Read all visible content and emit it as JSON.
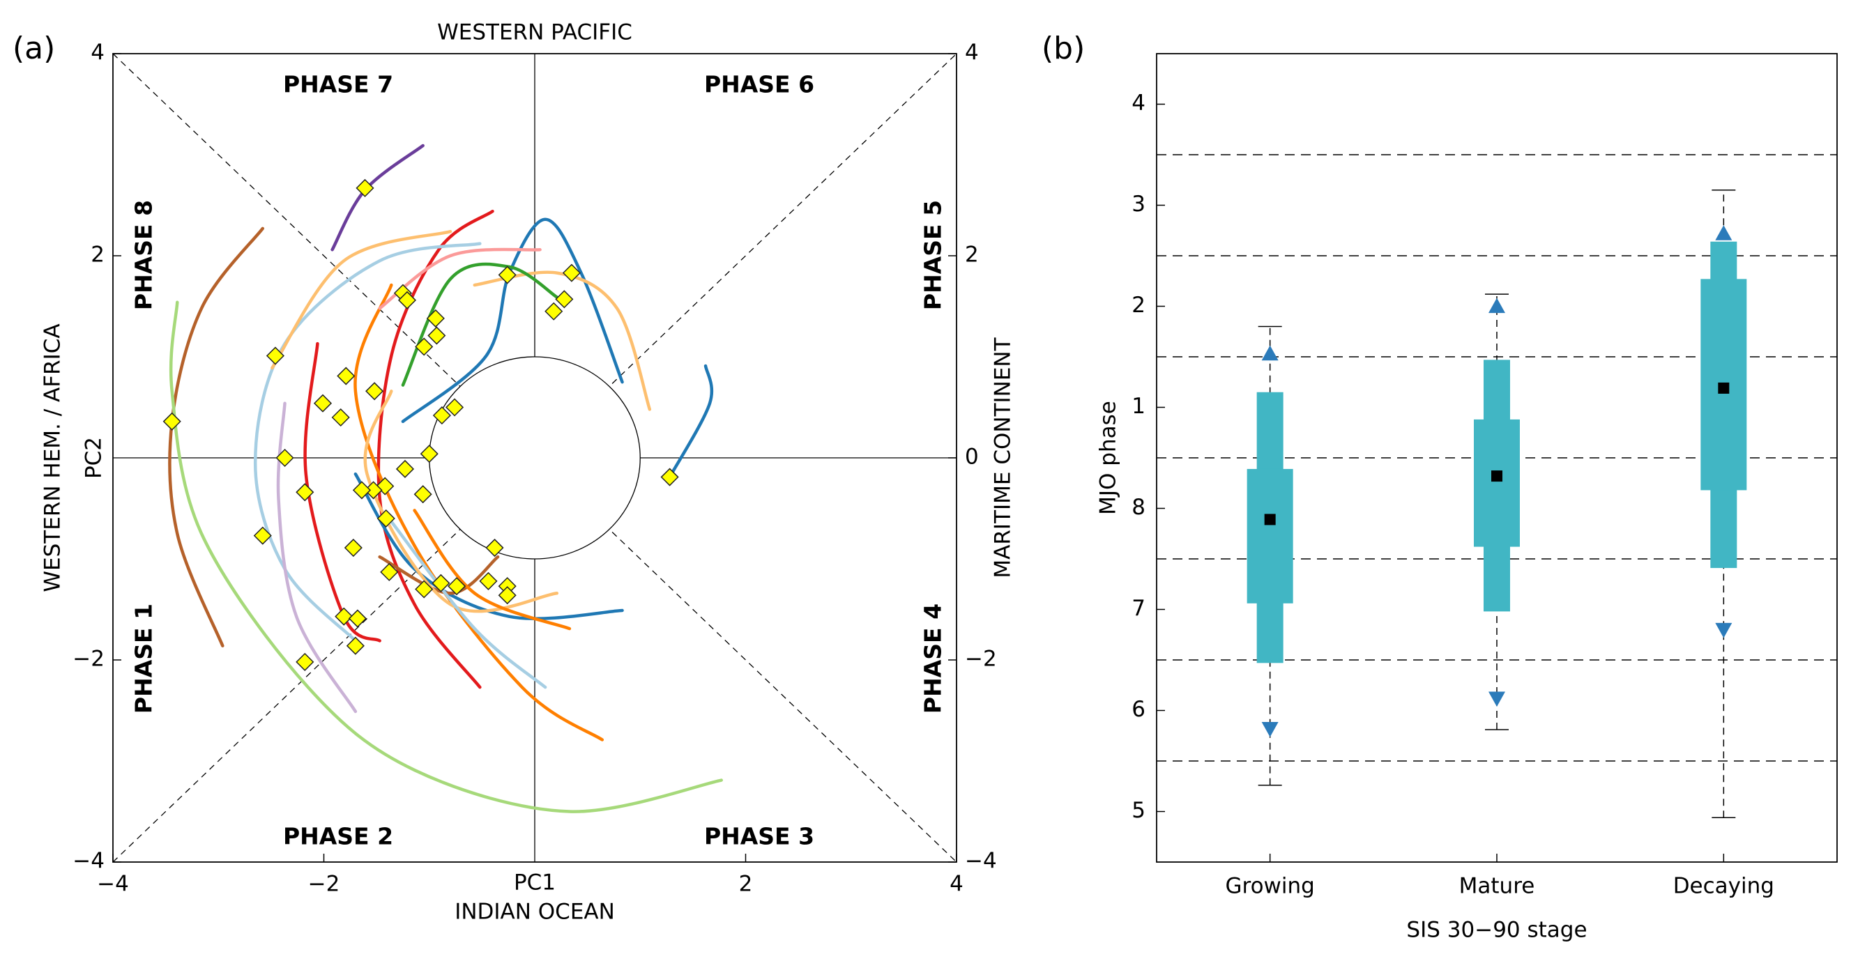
{
  "chart_data": [
    {
      "type": "phase_diagram",
      "panel_label": "(a)",
      "top_label": "WESTERN PACIFIC",
      "bottom_label": "INDIAN OCEAN",
      "left_label": "WESTERN HEM. / AFRICA",
      "right_label": "MARITIME CONTINENT",
      "xlabel": "PC1",
      "ylabel": "PC2",
      "phases": [
        "PHASE 1",
        "PHASE 2",
        "PHASE 3",
        "PHASE 4",
        "PHASE 5",
        "PHASE 6",
        "PHASE 7",
        "PHASE 8"
      ],
      "xlim": [
        -4,
        4
      ],
      "ylim": [
        -4,
        4
      ],
      "xticks": [
        -4,
        -2,
        2,
        4
      ],
      "yticks": [
        -4,
        -2,
        2,
        4
      ],
      "y2lim": [
        -4,
        4
      ],
      "y2ticks": [
        -4,
        -2,
        0,
        2,
        4
      ],
      "unit_circle_radius": 1,
      "series": [
        {
          "color": "#b5612a",
          "x": [
            -2.58,
            -3.16,
            -3.44,
            -3.39,
            -2.96
          ],
          "y": [
            2.27,
            1.48,
            0.36,
            -0.75,
            -1.86
          ]
        },
        {
          "color": "#a6d97a",
          "x": [
            -3.39,
            -3.44,
            -3.16,
            -2.15,
            -1.14,
            0.33,
            1.77
          ],
          "y": [
            1.54,
            0.66,
            -0.75,
            -2.27,
            -3.09,
            -3.5,
            -3.19
          ]
        },
        {
          "color": "#6a3d9a",
          "x": [
            -1.06,
            -1.61,
            -1.92
          ],
          "y": [
            3.09,
            2.65,
            2.06
          ]
        },
        {
          "color": "#1f78b4",
          "x": [
            1.62,
            1.66,
            1.28
          ],
          "y": [
            0.91,
            0.54,
            -0.19
          ]
        },
        {
          "color": "#1f78b4",
          "x": [
            0.83,
            0.44,
            0.1,
            -0.24,
            -0.46,
            -1.25
          ],
          "y": [
            0.75,
            1.83,
            2.36,
            1.83,
            1.01,
            0.36
          ]
        },
        {
          "color": "#fdbf6f",
          "x": [
            1.09,
            0.78,
            0.21,
            -0.57
          ],
          "y": [
            0.48,
            1.48,
            1.83,
            1.71
          ]
        },
        {
          "color": "#e31a1c",
          "x": [
            -0.4,
            -0.91,
            -1.36,
            -1.47,
            -1.14,
            -0.52
          ],
          "y": [
            2.44,
            2.06,
            1.01,
            -0.4,
            -1.45,
            -2.27
          ]
        },
        {
          "color": "#ff7f00",
          "x": [
            0.64,
            -0.12,
            -1.14,
            -1.7,
            -1.36
          ],
          "y": [
            -2.79,
            -2.27,
            -0.87,
            0.66,
            1.71
          ]
        },
        {
          "color": "#a6cee3",
          "x": [
            -0.52,
            -1.47,
            -2.37,
            -2.65,
            -2.37,
            -1.7
          ],
          "y": [
            2.12,
            1.95,
            1.13,
            -0.05,
            -1.1,
            -1.81
          ]
        },
        {
          "color": "#fdbf6f",
          "x": [
            -0.8,
            -1.81,
            -2.49
          ],
          "y": [
            2.24,
            1.95,
            0.89
          ]
        },
        {
          "color": "#33a02c",
          "x": [
            -1.25,
            -0.8,
            -0.24,
            0.21
          ],
          "y": [
            0.72,
            1.77,
            1.89,
            1.59
          ]
        },
        {
          "color": "#1f78b4",
          "x": [
            0.83,
            -0.24,
            -1.14,
            -1.7
          ],
          "y": [
            -1.51,
            -1.57,
            -1.1,
            -0.16
          ]
        },
        {
          "color": "#fb9a99",
          "x": [
            0.05,
            -0.8,
            -1.47
          ],
          "y": [
            2.06,
            2.0,
            1.48
          ]
        },
        {
          "color": "#cab2d6",
          "x": [
            -1.7,
            -2.26,
            -2.43,
            -2.37
          ],
          "y": [
            -2.51,
            -1.57,
            -0.4,
            0.54
          ]
        },
        {
          "color": "#e31a1c",
          "x": [
            -2.06,
            -2.17,
            -1.81,
            -1.47
          ],
          "y": [
            1.13,
            -0.16,
            -1.57,
            -1.81
          ]
        },
        {
          "color": "#b5612a",
          "x": [
            -0.35,
            -0.8,
            -1.47
          ],
          "y": [
            -0.98,
            -1.34,
            -0.98
          ]
        },
        {
          "color": "#fdbf6f",
          "x": [
            0.21,
            -0.8,
            -1.59,
            -1.36
          ],
          "y": [
            -1.34,
            -1.45,
            -0.16,
            0.66
          ]
        },
        {
          "color": "#a6cee3",
          "x": [
            0.1,
            -0.57,
            -1.36
          ],
          "y": [
            -2.27,
            -1.69,
            -0.63
          ]
        },
        {
          "color": "#ff7f00",
          "x": [
            0.33,
            -0.57,
            -1.14
          ],
          "y": [
            -1.69,
            -1.34,
            -0.52
          ]
        }
      ],
      "markers": {
        "color": "#ffff00",
        "x": [
          -1.61,
          -2.46,
          -3.44,
          -2.58,
          -2.37,
          -2.18,
          -2.01,
          -1.79,
          -1.84,
          -1.52,
          -1.25,
          -1.21,
          -0.94,
          -0.93,
          -1.05,
          -0.88,
          -0.76,
          -1.0,
          -1.23,
          -1.42,
          -1.53,
          -1.64,
          -1.41,
          -1.72,
          -1.81,
          -1.68,
          -1.7,
          -2.18,
          -1.06,
          -1.05,
          -0.89,
          -0.74,
          -0.44,
          -0.26,
          -0.26,
          -0.38,
          -0.26,
          0.35,
          0.28,
          0.18,
          1.28,
          -1.38
        ],
        "y": [
          2.67,
          1.01,
          0.36,
          -0.77,
          0.0,
          -0.34,
          0.54,
          0.81,
          0.4,
          0.66,
          1.63,
          1.56,
          1.38,
          1.21,
          1.1,
          0.42,
          0.5,
          0.04,
          -0.11,
          -0.28,
          -0.32,
          -0.32,
          -0.6,
          -0.89,
          -1.57,
          -1.59,
          -1.86,
          -2.02,
          -0.36,
          -1.3,
          -1.24,
          -1.27,
          -1.22,
          -1.27,
          -1.36,
          -0.89,
          1.81,
          1.83,
          1.57,
          1.45,
          -0.19,
          -1.13
        ]
      }
    },
    {
      "type": "box",
      "panel_label": "(b)",
      "xlabel": "SIS 30−90 stage",
      "ylabel": "MJO phase",
      "categories": [
        "Growing",
        "Mature",
        "Decaying"
      ],
      "ylim": [
        4.5,
        12.5
      ],
      "yticks": [
        5,
        6,
        7,
        8,
        {
          "value": 9,
          "label": "1"
        },
        {
          "value": 10,
          "label": "2"
        },
        {
          "value": 11,
          "label": "3"
        },
        {
          "value": 12,
          "label": "4"
        }
      ],
      "hlines": [
        5.5,
        6.5,
        7.5,
        8.5,
        9.5,
        10.5,
        11.5
      ],
      "color": "#41b6c4",
      "marker_color": "#2b7bba",
      "median_color": "#000000",
      "whisker_low": [
        5.26,
        5.81,
        4.94
      ],
      "whisker_high": [
        9.8,
        10.12,
        11.15
      ],
      "outer_low": [
        6.47,
        6.98,
        7.41
      ],
      "outer_high": [
        9.15,
        9.47,
        10.64
      ],
      "q1": [
        7.06,
        7.62,
        8.18
      ],
      "q3": [
        8.39,
        8.88,
        10.27
      ],
      "median": [
        7.89,
        8.32,
        9.19
      ],
      "upper_marker": [
        9.53,
        10.0,
        10.72
      ],
      "lower_marker": [
        5.82,
        6.12,
        6.8
      ]
    }
  ]
}
